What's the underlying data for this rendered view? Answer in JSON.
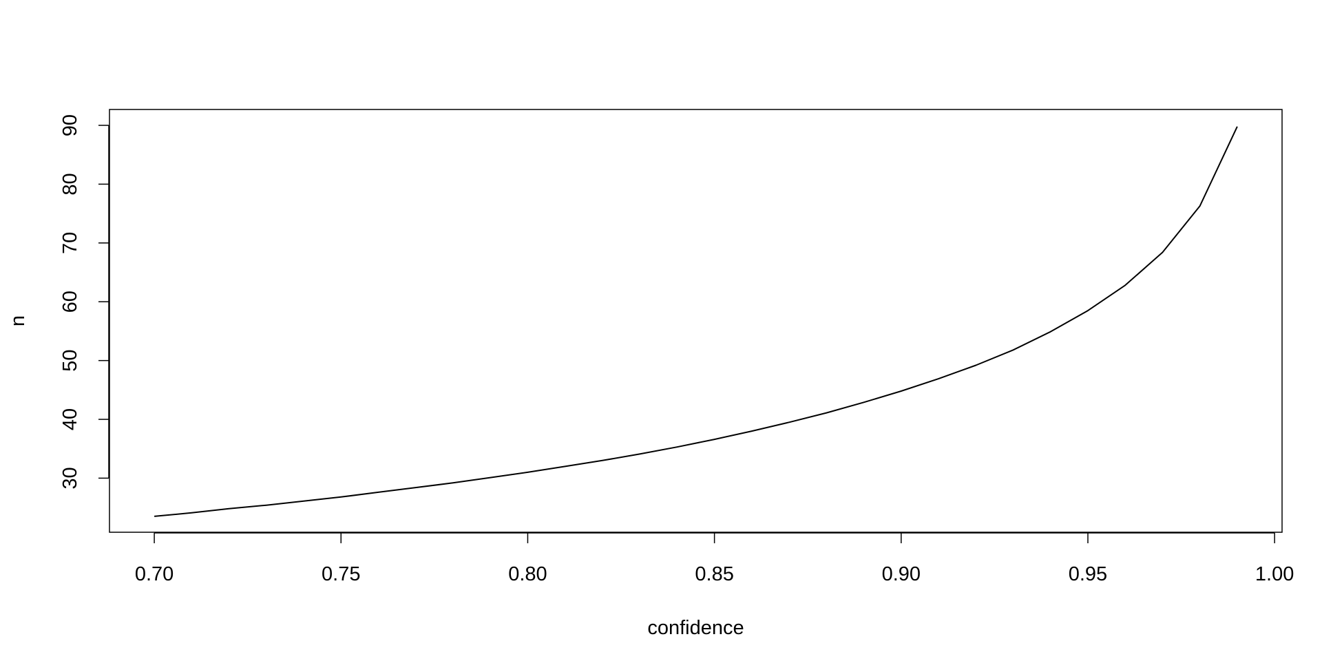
{
  "chart_data": {
    "type": "line",
    "title": "",
    "xlabel": "confidence",
    "ylabel": "n",
    "xlim": [
      0.688,
      1.002
    ],
    "ylim": [
      20.8,
      92.7
    ],
    "x_ticks": [
      {
        "value": 0.7,
        "label": "0.70"
      },
      {
        "value": 0.75,
        "label": "0.75"
      },
      {
        "value": 0.8,
        "label": "0.80"
      },
      {
        "value": 0.85,
        "label": "0.85"
      },
      {
        "value": 0.9,
        "label": "0.90"
      },
      {
        "value": 0.95,
        "label": "0.95"
      },
      {
        "value": 1.0,
        "label": "1.00"
      }
    ],
    "y_ticks": [
      {
        "value": 30,
        "label": "30"
      },
      {
        "value": 40,
        "label": "40"
      },
      {
        "value": 50,
        "label": "50"
      },
      {
        "value": 60,
        "label": "60"
      },
      {
        "value": 70,
        "label": "70"
      },
      {
        "value": 80,
        "label": "80"
      },
      {
        "value": 90,
        "label": "90"
      }
    ],
    "grid": false,
    "legend": "none",
    "series": [
      {
        "color": "#000000",
        "x": [
          0.7,
          0.71,
          0.72,
          0.73,
          0.74,
          0.75,
          0.76,
          0.77,
          0.78,
          0.79,
          0.8,
          0.81,
          0.82,
          0.83,
          0.84,
          0.85,
          0.86,
          0.87,
          0.88,
          0.89,
          0.9,
          0.91,
          0.92,
          0.93,
          0.94,
          0.95,
          0.96,
          0.97,
          0.98,
          0.99
        ],
        "y": [
          23.5,
          24.1,
          24.8,
          25.4,
          26.1,
          26.8,
          27.6,
          28.4,
          29.2,
          30.1,
          31.0,
          32.0,
          33.0,
          34.1,
          35.3,
          36.6,
          38.0,
          39.5,
          41.1,
          42.9,
          44.8,
          46.9,
          49.2,
          51.8,
          54.9,
          58.5,
          62.8,
          68.4,
          76.3,
          89.8
        ]
      }
    ]
  }
}
